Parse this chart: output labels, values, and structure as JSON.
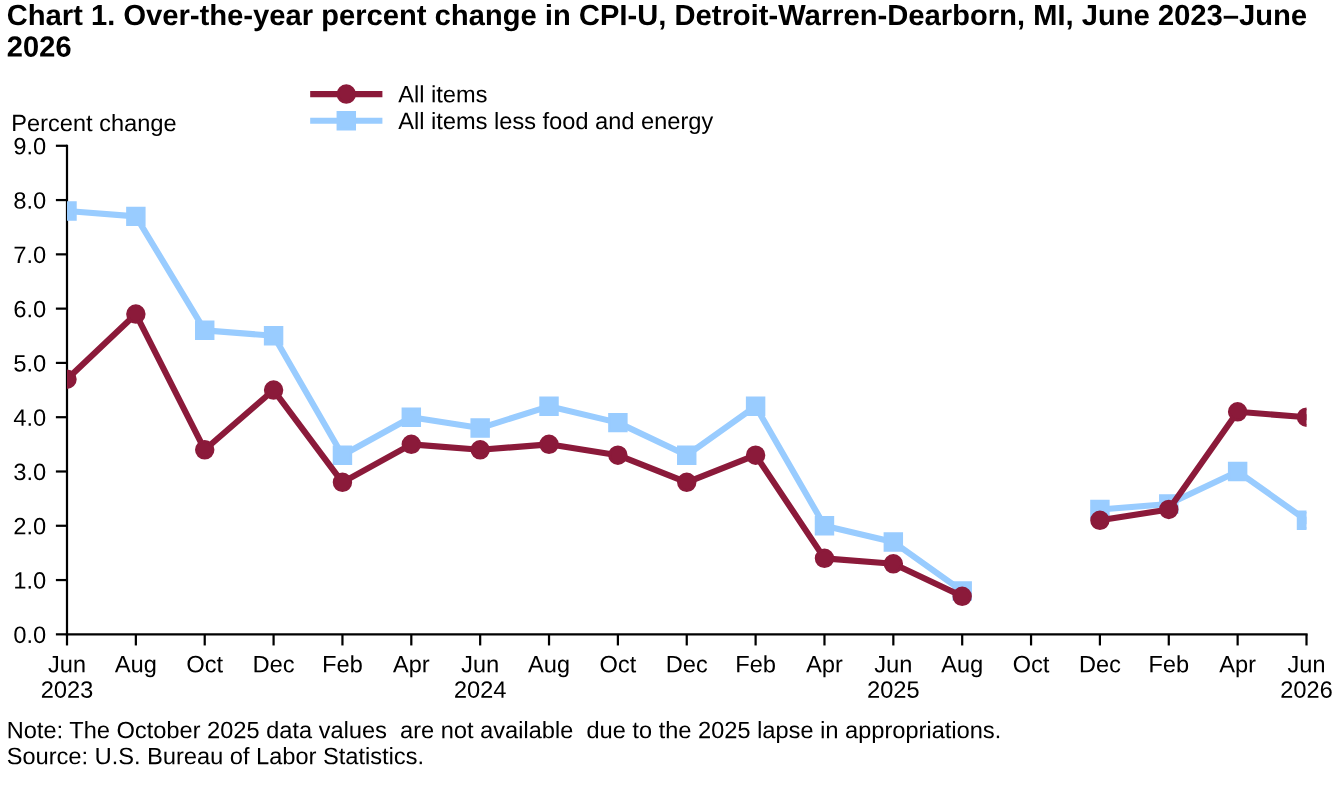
{
  "chart_data": {
    "type": "line",
    "title": "Chart 1. Over-the-year percent change in CPI-U, Detroit-Warren-Dearborn, MI, June 2023–June 2026",
    "ylabel": "Percent change",
    "categories": [
      "Jun\n2023",
      "Aug",
      "Oct",
      "Dec",
      "Feb",
      "Apr",
      "Jun\n2024",
      "Aug",
      "Oct",
      "Dec",
      "Feb",
      "Apr",
      "Jun\n2025",
      "Aug",
      "Oct",
      "Dec",
      "Feb",
      "Apr",
      "Jun\n2026"
    ],
    "series": [
      {
        "name": "All items",
        "color": "#8b1a3a",
        "marker": "circle",
        "values": [
          4.7,
          5.9,
          3.4,
          4.5,
          2.8,
          3.5,
          3.4,
          3.5,
          3.3,
          2.8,
          3.3,
          1.4,
          1.3,
          0.7,
          null,
          2.1,
          2.3,
          4.1,
          4.0
        ]
      },
      {
        "name": "All items less food and energy",
        "color": "#99ccff",
        "marker": "square",
        "values": [
          7.8,
          7.7,
          5.6,
          5.5,
          3.3,
          4.0,
          3.8,
          4.2,
          3.9,
          3.3,
          4.2,
          2.0,
          1.7,
          0.8,
          null,
          2.3,
          2.4,
          3.0,
          2.1
        ]
      }
    ],
    "ylim": [
      0,
      9
    ],
    "yticks": [
      {
        "value": 0,
        "label": "0.0"
      },
      {
        "value": 1,
        "label": "1.0"
      },
      {
        "value": 2,
        "label": "2.0"
      },
      {
        "value": 3,
        "label": "3.0"
      },
      {
        "value": 4,
        "label": "4.0"
      },
      {
        "value": 5,
        "label": "5.0"
      },
      {
        "value": 6,
        "label": "6.0"
      },
      {
        "value": 7,
        "label": "7.0"
      },
      {
        "value": 8,
        "label": "8.0"
      },
      {
        "value": 9,
        "label": "9.0"
      }
    ],
    "grid": false,
    "legend": "top",
    "line_style": "solid",
    "annotations": [
      "Note: The October 2025 data values  are not available  due to the 2025 lapse in appropriations.",
      "Source: U.S. Bureau of Labor Statistics."
    ]
  }
}
